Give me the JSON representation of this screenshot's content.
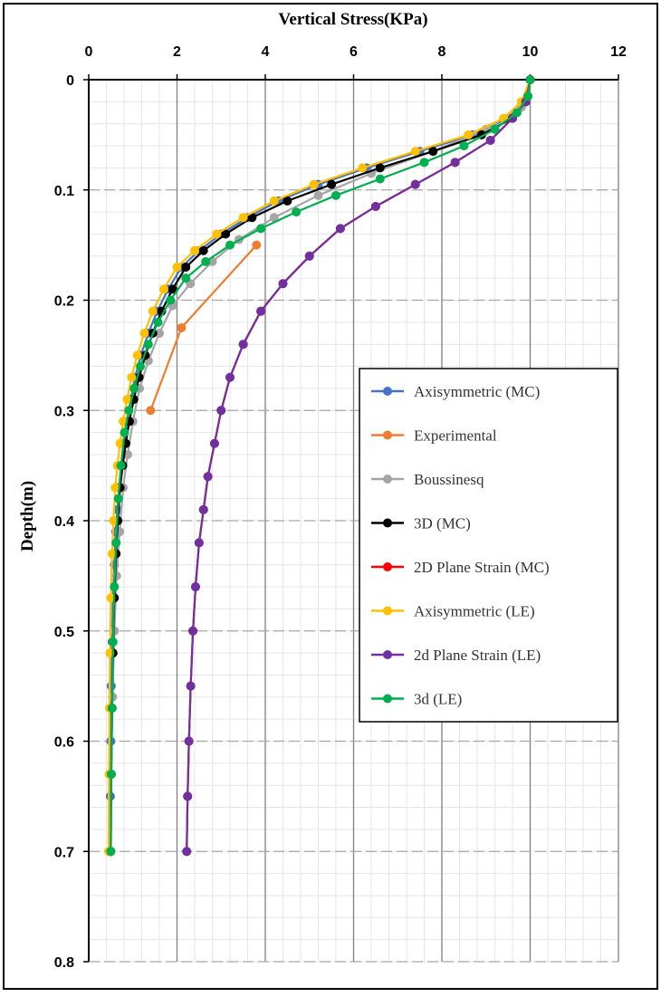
{
  "chart_data": {
    "type": "line",
    "xlabel": "Vertical Stress(KPa)",
    "ylabel": "Depth(m)",
    "xlim": [
      0,
      12
    ],
    "ylim": [
      0,
      0.8
    ],
    "y_reversed": true,
    "x_axis_position": "top",
    "x_ticks": [
      "0",
      "2",
      "4",
      "6",
      "8",
      "10",
      "12"
    ],
    "y_ticks": [
      "0",
      "0.1",
      "0.2",
      "0.3",
      "0.4",
      "0.5",
      "0.6",
      "0.7",
      "0.8"
    ],
    "grid": true,
    "legend_position": "right-middle",
    "series": [
      {
        "name": "Axisymmetric (MC)",
        "color": "#4472C4",
        "marker": true,
        "x": [
          10.0,
          9.9,
          9.5,
          8.7,
          7.5,
          6.3,
          5.2,
          4.3,
          3.6,
          3.0,
          2.5,
          2.1,
          1.8,
          1.55,
          1.35,
          1.18,
          1.05,
          0.95,
          0.87,
          0.8,
          0.74,
          0.69,
          0.65,
          0.61,
          0.58,
          0.55,
          0.53,
          0.51,
          0.5,
          0.49,
          0.48
        ],
        "y": [
          0.0,
          0.02,
          0.035,
          0.05,
          0.065,
          0.08,
          0.095,
          0.11,
          0.125,
          0.14,
          0.155,
          0.17,
          0.19,
          0.21,
          0.23,
          0.25,
          0.27,
          0.29,
          0.31,
          0.33,
          0.35,
          0.37,
          0.39,
          0.41,
          0.44,
          0.47,
          0.51,
          0.55,
          0.6,
          0.65,
          0.7
        ]
      },
      {
        "name": "Experimental",
        "color": "#ED7D31",
        "marker": true,
        "x": [
          3.8,
          2.1,
          1.4
        ],
        "y": [
          0.15,
          0.225,
          0.3
        ]
      },
      {
        "name": "Boussinesq",
        "color": "#A5A5A5",
        "marker": true,
        "x": [
          10.0,
          9.8,
          9.0,
          7.8,
          6.4,
          5.2,
          4.2,
          3.4,
          2.8,
          2.3,
          1.9,
          1.6,
          1.35,
          1.15,
          1.0,
          0.88,
          0.78,
          0.7,
          0.63,
          0.58,
          0.54,
          0.51,
          0.49
        ],
        "y": [
          0.0,
          0.025,
          0.045,
          0.065,
          0.085,
          0.105,
          0.125,
          0.145,
          0.165,
          0.185,
          0.205,
          0.23,
          0.255,
          0.28,
          0.31,
          0.34,
          0.37,
          0.41,
          0.45,
          0.5,
          0.56,
          0.63,
          0.7
        ]
      },
      {
        "name": "3D (MC)",
        "color": "#000000",
        "marker": true,
        "x": [
          10.0,
          9.9,
          9.6,
          8.9,
          7.8,
          6.6,
          5.5,
          4.5,
          3.7,
          3.1,
          2.6,
          2.2,
          1.9,
          1.65,
          1.45,
          1.28,
          1.14,
          1.02,
          0.92,
          0.84,
          0.77,
          0.71,
          0.66,
          0.62,
          0.58,
          0.55,
          0.53,
          0.51,
          0.5
        ],
        "y": [
          0.0,
          0.02,
          0.035,
          0.05,
          0.065,
          0.08,
          0.095,
          0.11,
          0.125,
          0.14,
          0.155,
          0.17,
          0.19,
          0.21,
          0.23,
          0.25,
          0.27,
          0.29,
          0.31,
          0.33,
          0.35,
          0.37,
          0.4,
          0.43,
          0.47,
          0.52,
          0.57,
          0.63,
          0.7
        ]
      },
      {
        "name": "2D Plane Strain (MC)",
        "color": "#FF0000",
        "marker": true,
        "x": [
          10.0,
          9.9,
          9.6,
          9.1,
          8.3,
          7.4,
          6.5,
          5.7,
          5.0,
          4.4,
          3.9,
          3.5,
          3.2,
          3.0,
          2.85,
          2.7,
          2.6,
          2.5,
          2.42,
          2.36,
          2.31,
          2.27,
          2.24,
          2.22
        ],
        "y": [
          0.0,
          0.02,
          0.035,
          0.055,
          0.075,
          0.095,
          0.115,
          0.135,
          0.16,
          0.185,
          0.21,
          0.24,
          0.27,
          0.3,
          0.33,
          0.36,
          0.39,
          0.42,
          0.46,
          0.5,
          0.55,
          0.6,
          0.65,
          0.7
        ]
      },
      {
        "name": "Axisymmetric (LE)",
        "color": "#FFC000",
        "marker": true,
        "x": [
          10.0,
          9.8,
          9.4,
          8.6,
          7.4,
          6.2,
          5.1,
          4.2,
          3.5,
          2.9,
          2.4,
          2.0,
          1.7,
          1.45,
          1.26,
          1.1,
          0.97,
          0.87,
          0.78,
          0.71,
          0.65,
          0.6,
          0.56,
          0.53,
          0.5,
          0.48,
          0.47,
          0.46,
          0.45
        ],
        "y": [
          0.0,
          0.02,
          0.035,
          0.05,
          0.065,
          0.08,
          0.095,
          0.11,
          0.125,
          0.14,
          0.155,
          0.17,
          0.19,
          0.21,
          0.23,
          0.25,
          0.27,
          0.29,
          0.31,
          0.33,
          0.35,
          0.37,
          0.4,
          0.43,
          0.47,
          0.52,
          0.57,
          0.63,
          0.7
        ]
      },
      {
        "name": "2d Plane Strain (LE)",
        "color": "#7030A0",
        "marker": true,
        "x": [
          10.0,
          9.9,
          9.6,
          9.1,
          8.3,
          7.4,
          6.5,
          5.7,
          5.0,
          4.4,
          3.9,
          3.5,
          3.2,
          3.0,
          2.85,
          2.7,
          2.6,
          2.5,
          2.42,
          2.36,
          2.31,
          2.27,
          2.24,
          2.22
        ],
        "y": [
          0.0,
          0.02,
          0.035,
          0.055,
          0.075,
          0.095,
          0.115,
          0.135,
          0.16,
          0.185,
          0.21,
          0.24,
          0.27,
          0.3,
          0.33,
          0.36,
          0.39,
          0.42,
          0.46,
          0.5,
          0.55,
          0.6,
          0.65,
          0.7
        ]
      },
      {
        "name": "3d (LE)",
        "color": "#00B050",
        "marker": true,
        "x": [
          10.0,
          9.95,
          9.7,
          9.2,
          8.5,
          7.6,
          6.6,
          5.6,
          4.7,
          3.9,
          3.2,
          2.65,
          2.2,
          1.85,
          1.57,
          1.35,
          1.17,
          1.03,
          0.91,
          0.81,
          0.73,
          0.67,
          0.62,
          0.58,
          0.55,
          0.53,
          0.51,
          0.5
        ],
        "y": [
          0.0,
          0.015,
          0.03,
          0.045,
          0.06,
          0.075,
          0.09,
          0.105,
          0.12,
          0.135,
          0.15,
          0.165,
          0.18,
          0.2,
          0.22,
          0.24,
          0.26,
          0.28,
          0.3,
          0.32,
          0.35,
          0.38,
          0.42,
          0.46,
          0.51,
          0.57,
          0.63,
          0.7
        ]
      }
    ]
  }
}
